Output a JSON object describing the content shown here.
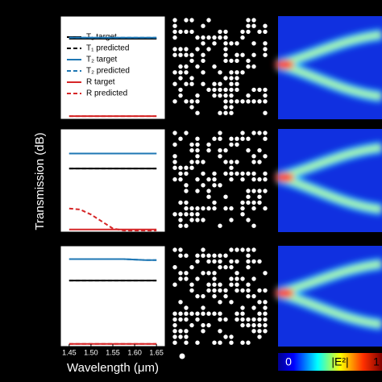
{
  "chart_data": [
    {
      "type": "line",
      "x": [
        1.45,
        1.475,
        1.5,
        1.525,
        1.55,
        1.575,
        1.6,
        1.625,
        1.65
      ],
      "xlim": [
        1.43,
        1.67
      ],
      "ylim": [
        0,
        1
      ],
      "legend": "upper-left",
      "series": [
        {
          "name": "T₁ target",
          "color": "#000000",
          "style": "solid",
          "values": [
            0.79,
            0.79,
            0.79,
            0.79,
            0.79,
            0.79,
            0.79,
            0.79,
            0.79
          ]
        },
        {
          "name": "T₁ predicted",
          "color": "#000000",
          "style": "dashed",
          "values": [
            0.79,
            0.79,
            0.79,
            0.79,
            0.79,
            0.79,
            0.79,
            0.79,
            0.79
          ]
        },
        {
          "name": "T₂ target",
          "color": "#1f77b4",
          "style": "solid",
          "values": [
            0.8,
            0.8,
            0.8,
            0.8,
            0.8,
            0.8,
            0.8,
            0.8,
            0.8
          ]
        },
        {
          "name": "T₂ predicted",
          "color": "#1f77b4",
          "style": "dashed",
          "values": [
            0.8,
            0.8,
            0.8,
            0.8,
            0.8,
            0.8,
            0.8,
            0.8,
            0.8
          ]
        },
        {
          "name": "R target",
          "color": "#d62728",
          "style": "solid",
          "values": [
            0.015,
            0.015,
            0.015,
            0.015,
            0.015,
            0.015,
            0.015,
            0.015,
            0.015
          ]
        },
        {
          "name": "R predicted",
          "color": "#d62728",
          "style": "dashed",
          "values": [
            0.015,
            0.015,
            0.015,
            0.015,
            0.015,
            0.015,
            0.015,
            0.015,
            0.015
          ]
        }
      ]
    },
    {
      "type": "line",
      "x": [
        1.45,
        1.475,
        1.5,
        1.525,
        1.55,
        1.575,
        1.6,
        1.625,
        1.65
      ],
      "xlim": [
        1.43,
        1.67
      ],
      "ylim": [
        0,
        1
      ],
      "ylabel": "Transmission (dB)",
      "series": [
        {
          "color": "#000000",
          "style": "solid",
          "values": [
            0.62,
            0.62,
            0.62,
            0.62,
            0.62,
            0.62,
            0.62,
            0.62,
            0.62
          ]
        },
        {
          "color": "#000000",
          "style": "dashed",
          "values": [
            0.62,
            0.62,
            0.62,
            0.62,
            0.62,
            0.62,
            0.62,
            0.62,
            0.62
          ]
        },
        {
          "color": "#1f77b4",
          "style": "solid",
          "values": [
            0.77,
            0.77,
            0.77,
            0.77,
            0.77,
            0.77,
            0.77,
            0.77,
            0.77
          ]
        },
        {
          "color": "#1f77b4",
          "style": "dashed",
          "values": [
            0.77,
            0.77,
            0.77,
            0.77,
            0.77,
            0.77,
            0.77,
            0.77,
            0.77
          ]
        },
        {
          "color": "#d62728",
          "style": "solid",
          "values": [
            0.01,
            0.01,
            0.01,
            0.01,
            0.01,
            0.01,
            0.01,
            0.01,
            0.01
          ]
        },
        {
          "color": "#d62728",
          "style": "dashed",
          "values": [
            0.22,
            0.21,
            0.16,
            0.09,
            0.02,
            0,
            0,
            0,
            0
          ]
        }
      ]
    },
    {
      "type": "line",
      "x": [
        1.45,
        1.475,
        1.5,
        1.525,
        1.55,
        1.575,
        1.6,
        1.625,
        1.65
      ],
      "xlim": [
        1.43,
        1.67
      ],
      "ylim": [
        0,
        1
      ],
      "xlabel": "Wavelength (μm)",
      "xticks": [
        {
          "value": 1.45,
          "label": "1.45"
        },
        {
          "value": 1.5,
          "label": "1.50"
        },
        {
          "value": 1.55,
          "label": "1.55"
        },
        {
          "value": 1.6,
          "label": "1.60"
        },
        {
          "value": 1.65,
          "label": "1.65"
        }
      ],
      "colorbar_labels": [
        "0",
        "|E²|",
        "1"
      ],
      "series": [
        {
          "color": "#000000",
          "style": "solid",
          "values": [
            0.66,
            0.66,
            0.66,
            0.66,
            0.66,
            0.66,
            0.66,
            0.66,
            0.66
          ]
        },
        {
          "color": "#000000",
          "style": "dashed",
          "values": [
            0.66,
            0.66,
            0.66,
            0.66,
            0.66,
            0.66,
            0.66,
            0.66,
            0.66
          ]
        },
        {
          "color": "#1f77b4",
          "style": "solid",
          "values": [
            0.88,
            0.88,
            0.88,
            0.88,
            0.88,
            0.88,
            0.875,
            0.87,
            0.87
          ]
        },
        {
          "color": "#1f77b4",
          "style": "dashed",
          "values": [
            0.88,
            0.88,
            0.88,
            0.88,
            0.88,
            0.88,
            0.875,
            0.87,
            0.87
          ]
        },
        {
          "color": "#d62728",
          "style": "solid",
          "values": [
            0.01,
            0.01,
            0.01,
            0.01,
            0.01,
            0.01,
            0.01,
            0.01,
            0.01
          ]
        },
        {
          "color": "#d62728",
          "style": "dashed",
          "values": [
            0.01,
            0.01,
            0.01,
            0.01,
            0.01,
            0.01,
            0.01,
            0.01,
            0.01
          ]
        }
      ]
    }
  ]
}
